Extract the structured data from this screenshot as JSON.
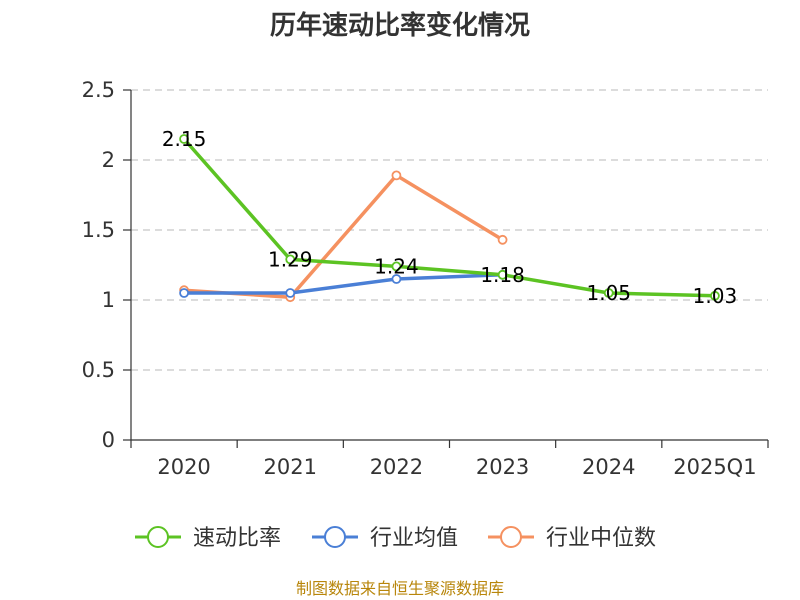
{
  "chart_data": {
    "type": "line",
    "title": "历年速动比率变化情况",
    "categories": [
      "2020",
      "2021",
      "2022",
      "2023",
      "2024",
      "2025Q1"
    ],
    "yticks": [
      "0",
      "0.5",
      "1",
      "1.5",
      "2",
      "2.5"
    ],
    "ylim": [
      0,
      2.5
    ],
    "grid": "horizontal dashed",
    "legend_position": "bottom",
    "series": [
      {
        "name": "速动比率",
        "color": "#5cc323",
        "values": [
          2.15,
          1.29,
          1.24,
          1.18,
          1.05,
          1.03
        ],
        "labels": [
          "2.15",
          "1.29",
          "1.24",
          "1.18",
          "1.05",
          "1.03"
        ]
      },
      {
        "name": "行业均值",
        "color": "#4a7fd6",
        "values": [
          1.05,
          1.05,
          1.15,
          1.18,
          null,
          null
        ]
      },
      {
        "name": "行业中位数",
        "color": "#f59160",
        "values": [
          1.07,
          1.02,
          1.89,
          1.43,
          null,
          null
        ]
      }
    ]
  },
  "footer": {
    "source": "制图数据来自恒生聚源数据库"
  }
}
